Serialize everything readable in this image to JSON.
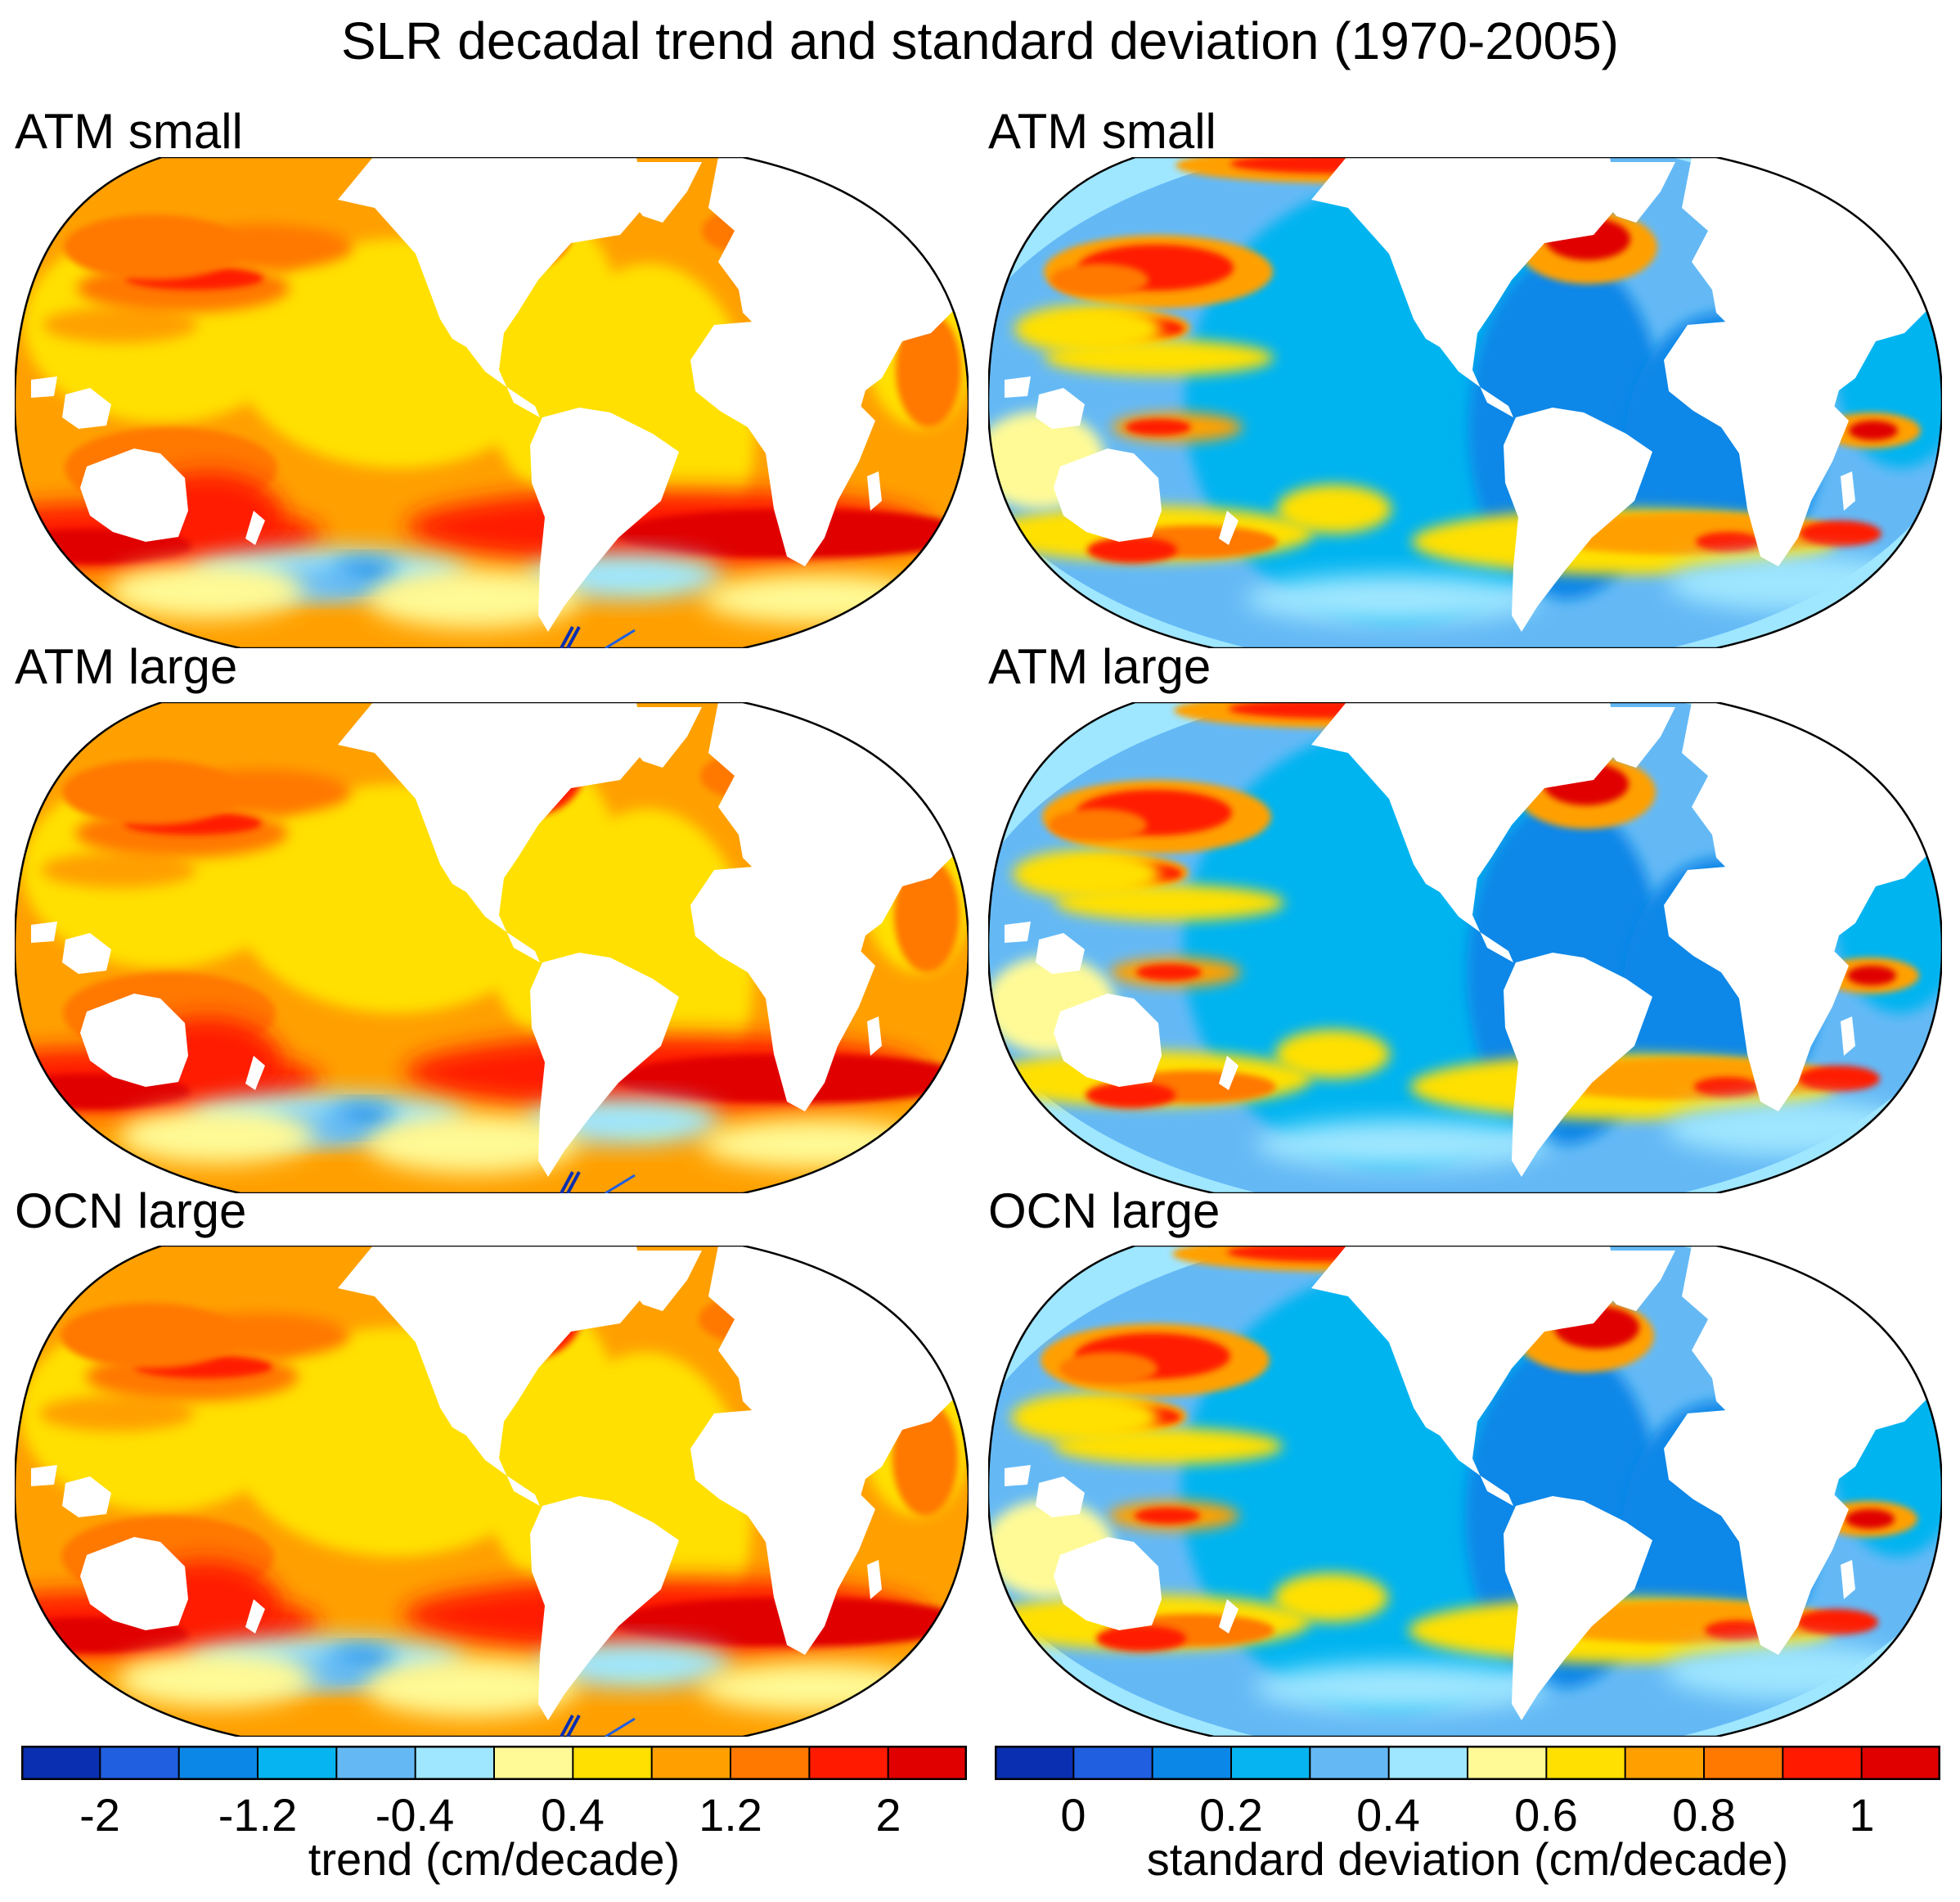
{
  "title": "SLR decadal trend and standard deviation (1970-2005)",
  "panels": [
    {
      "label": "ATM small",
      "kind": "trend"
    },
    {
      "label": "ATM small",
      "kind": "std"
    },
    {
      "label": "ATM large",
      "kind": "trend"
    },
    {
      "label": "ATM large",
      "kind": "std"
    },
    {
      "label": "OCN large",
      "kind": "trend"
    },
    {
      "label": "OCN large",
      "kind": "std"
    }
  ],
  "colorbars": {
    "trend": {
      "colors": [
        "#0a2fb0",
        "#1f5fe0",
        "#0b87e8",
        "#05b4f0",
        "#64b9f5",
        "#9fe6ff",
        "#fffa96",
        "#ffe000",
        "#ffa000",
        "#ff7800",
        "#ff1a00",
        "#e00000"
      ],
      "tick_labels": [
        "-2",
        "-1.2",
        "-0.4",
        "0.4",
        "1.2",
        "2"
      ],
      "title": "trend (cm/decade)"
    },
    "std": {
      "colors": [
        "#0a2fb0",
        "#1f5fe0",
        "#0b87e8",
        "#05b4f0",
        "#64b9f5",
        "#9fe6ff",
        "#fffa96",
        "#ffe000",
        "#ffa000",
        "#ff7800",
        "#ff1a00",
        "#e00000"
      ],
      "tick_labels": [
        "0",
        "0.2",
        "0.4",
        "0.6",
        "0.8",
        "1"
      ],
      "title": "standard deviation (cm/decade)"
    }
  }
}
